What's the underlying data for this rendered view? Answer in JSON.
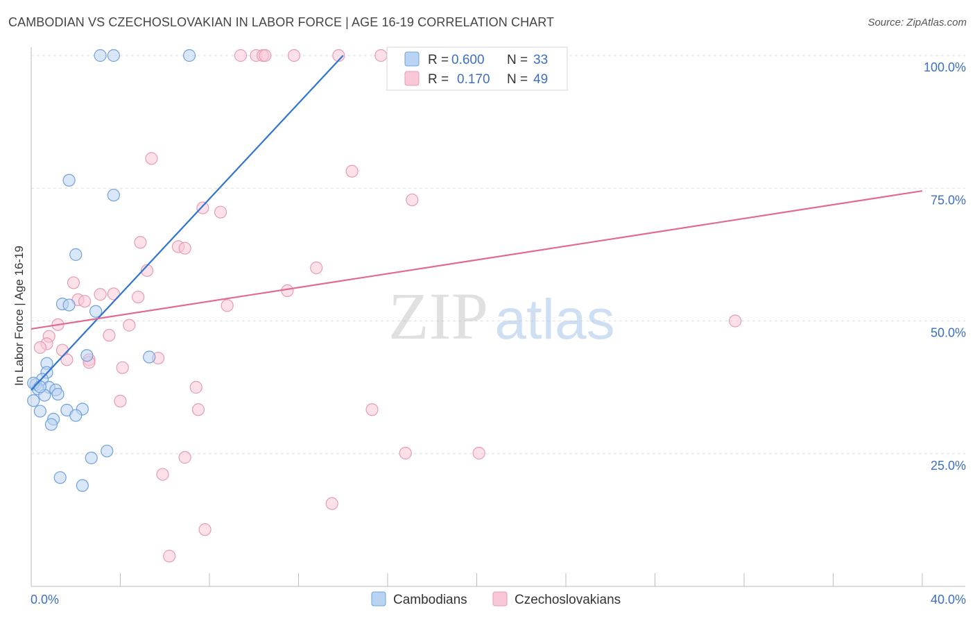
{
  "title": "CAMBODIAN VS CZECHOSLOVAKIAN IN LABOR FORCE | AGE 16-19 CORRELATION CHART",
  "source": "Source: ZipAtlas.com",
  "watermark": {
    "zip": "ZIP",
    "atlas": "atlas"
  },
  "colors": {
    "blue_fill": "#b9d3f2",
    "blue_stroke": "#6fa0dd",
    "blue_line": "#2f74d0",
    "pink_fill": "#f9c8d7",
    "pink_stroke": "#e99ab3",
    "pink_line": "#e06a93",
    "axis_text": "#3a6fc4",
    "grid": "#dddddd"
  },
  "legend": {
    "rows": [
      {
        "r_label": "R =",
        "r_value": "0.600",
        "n_label": "N =",
        "n_value": "33"
      },
      {
        "r_label": "R =",
        "r_value": "0.170",
        "n_label": "N =",
        "n_value": "49"
      }
    ]
  },
  "chart_data": {
    "type": "scatter",
    "title": "CAMBODIAN VS CZECHOSLOVAKIAN IN LABOR FORCE | AGE 16-19 CORRELATION CHART",
    "xlabel": "",
    "ylabel": "In Labor Force | Age 16-19",
    "xlim": [
      0,
      40
    ],
    "ylim": [
      0,
      100
    ],
    "x_tick_labels": [
      "0.0%",
      "40.0%"
    ],
    "y_ticks": [
      {
        "value": 100,
        "label": "100.0%"
      },
      {
        "value": 75,
        "label": "75.0%"
      },
      {
        "value": 50,
        "label": "50.0%"
      },
      {
        "value": 25,
        "label": "25.0%"
      }
    ],
    "grid": true,
    "legend_position": "top",
    "series": [
      {
        "name": "Cambodians",
        "color": "#6fa0dd",
        "trend": {
          "x": [
            0.0,
            14.0
          ],
          "y": [
            37.0,
            100.0
          ]
        },
        "points": [
          {
            "x": 3.1,
            "y": 100
          },
          {
            "x": 3.7,
            "y": 100
          },
          {
            "x": 7.1,
            "y": 100
          },
          {
            "x": 1.7,
            "y": 76.5
          },
          {
            "x": 3.7,
            "y": 73.7
          },
          {
            "x": 2.0,
            "y": 62.5
          },
          {
            "x": 1.4,
            "y": 53.2
          },
          {
            "x": 1.7,
            "y": 53.0
          },
          {
            "x": 2.9,
            "y": 51.8
          },
          {
            "x": 2.5,
            "y": 43.5
          },
          {
            "x": 5.3,
            "y": 43.2
          },
          {
            "x": 0.7,
            "y": 42.0
          },
          {
            "x": 0.7,
            "y": 40.3
          },
          {
            "x": 0.5,
            "y": 39.0
          },
          {
            "x": 0.2,
            "y": 38.0
          },
          {
            "x": 0.3,
            "y": 37.2
          },
          {
            "x": 0.8,
            "y": 37.5
          },
          {
            "x": 1.1,
            "y": 37.0
          },
          {
            "x": 0.6,
            "y": 36.0
          },
          {
            "x": 1.2,
            "y": 36.2
          },
          {
            "x": 0.1,
            "y": 35.0
          },
          {
            "x": 0.4,
            "y": 33.0
          },
          {
            "x": 1.6,
            "y": 33.2
          },
          {
            "x": 2.3,
            "y": 33.4
          },
          {
            "x": 2.0,
            "y": 32.2
          },
          {
            "x": 1.0,
            "y": 31.5
          },
          {
            "x": 0.9,
            "y": 30.5
          },
          {
            "x": 3.4,
            "y": 25.5
          },
          {
            "x": 2.7,
            "y": 24.2
          },
          {
            "x": 1.3,
            "y": 20.5
          },
          {
            "x": 2.3,
            "y": 19.0
          },
          {
            "x": 0.1,
            "y": 38.3
          },
          {
            "x": 0.4,
            "y": 37.6
          }
        ]
      },
      {
        "name": "Czechoslovakians",
        "color": "#e99ab3",
        "trend": {
          "x": [
            0.0,
            40.0
          ],
          "y": [
            48.5,
            74.5
          ]
        },
        "points": [
          {
            "x": 9.4,
            "y": 100
          },
          {
            "x": 10.1,
            "y": 100
          },
          {
            "x": 10.4,
            "y": 100
          },
          {
            "x": 10.5,
            "y": 100
          },
          {
            "x": 11.8,
            "y": 100
          },
          {
            "x": 13.8,
            "y": 100
          },
          {
            "x": 15.7,
            "y": 100
          },
          {
            "x": 14.4,
            "y": 78.2
          },
          {
            "x": 5.4,
            "y": 80.6
          },
          {
            "x": 17.1,
            "y": 72.8
          },
          {
            "x": 7.7,
            "y": 71.3
          },
          {
            "x": 8.5,
            "y": 70.5
          },
          {
            "x": 4.9,
            "y": 64.8
          },
          {
            "x": 6.6,
            "y": 64.0
          },
          {
            "x": 6.9,
            "y": 63.7
          },
          {
            "x": 12.8,
            "y": 60.0
          },
          {
            "x": 5.2,
            "y": 59.5
          },
          {
            "x": 1.9,
            "y": 57.2
          },
          {
            "x": 11.5,
            "y": 55.7
          },
          {
            "x": 3.1,
            "y": 55.0
          },
          {
            "x": 3.7,
            "y": 55.1
          },
          {
            "x": 4.8,
            "y": 54.5
          },
          {
            "x": 2.1,
            "y": 54.0
          },
          {
            "x": 2.4,
            "y": 53.7
          },
          {
            "x": 8.8,
            "y": 52.9
          },
          {
            "x": 31.6,
            "y": 50.0
          },
          {
            "x": 4.4,
            "y": 49.2
          },
          {
            "x": 1.2,
            "y": 49.3
          },
          {
            "x": 3.5,
            "y": 47.3
          },
          {
            "x": 0.8,
            "y": 47.1
          },
          {
            "x": 0.7,
            "y": 45.7
          },
          {
            "x": 0.4,
            "y": 45.0
          },
          {
            "x": 1.4,
            "y": 44.5
          },
          {
            "x": 1.6,
            "y": 42.7
          },
          {
            "x": 2.6,
            "y": 42.7
          },
          {
            "x": 5.7,
            "y": 43.0
          },
          {
            "x": 2.6,
            "y": 42.2
          },
          {
            "x": 4.1,
            "y": 41.2
          },
          {
            "x": 7.4,
            "y": 37.5
          },
          {
            "x": 4.0,
            "y": 34.9
          },
          {
            "x": 7.5,
            "y": 33.3
          },
          {
            "x": 15.3,
            "y": 33.3
          },
          {
            "x": 16.8,
            "y": 25.1
          },
          {
            "x": 20.1,
            "y": 25.1
          },
          {
            "x": 6.9,
            "y": 24.3
          },
          {
            "x": 5.9,
            "y": 21.1
          },
          {
            "x": 13.5,
            "y": 15.6
          },
          {
            "x": 7.8,
            "y": 10.7
          },
          {
            "x": 6.2,
            "y": 5.7
          }
        ]
      }
    ]
  }
}
